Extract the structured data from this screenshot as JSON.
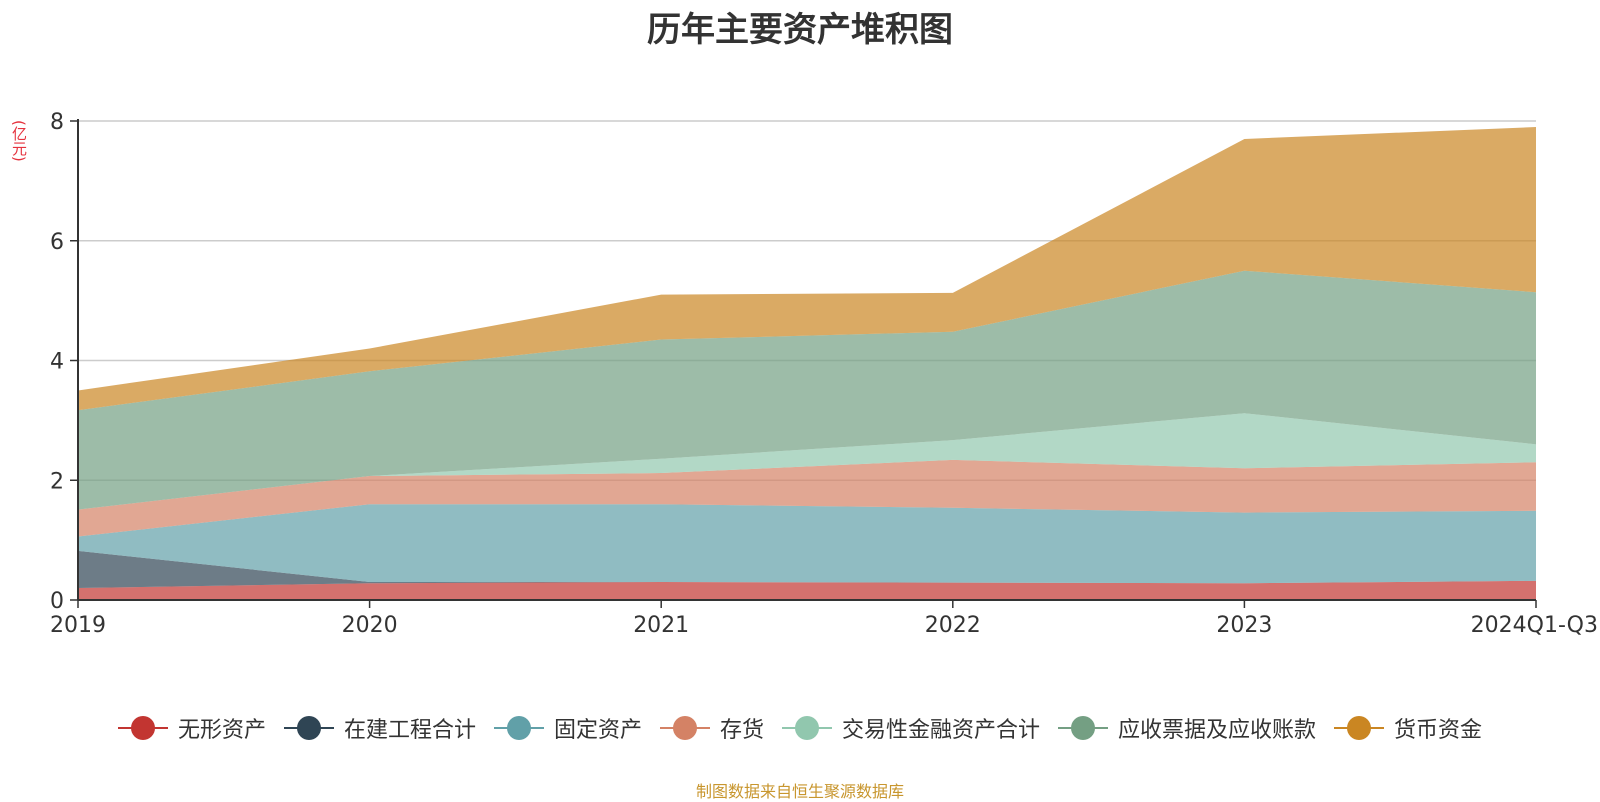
{
  "chart_data": {
    "type": "area",
    "stacked": true,
    "title": "历年主要资产堆积图",
    "unit": "(亿元)",
    "categories": [
      "2019",
      "2020",
      "2021",
      "2022",
      "2023",
      "2024Q1-Q3"
    ],
    "ylim": [
      0,
      8
    ],
    "yticks": [
      "0",
      "2",
      "4",
      "6",
      "8"
    ],
    "grid": true,
    "legend_position": "bottom",
    "series": [
      {
        "name": "无形资产",
        "color": "#c23531",
        "values": [
          0.2,
          0.28,
          0.3,
          0.29,
          0.28,
          0.32
        ]
      },
      {
        "name": "在建工程合计",
        "color": "#2f4554",
        "values": [
          0.62,
          0.02,
          0.0,
          0.0,
          0.0,
          0.0
        ]
      },
      {
        "name": "固定资产",
        "color": "#61a0a8",
        "values": [
          0.24,
          1.3,
          1.3,
          1.25,
          1.18,
          1.17
        ]
      },
      {
        "name": "存货",
        "color": "#d48265",
        "values": [
          0.45,
          0.47,
          0.52,
          0.8,
          0.74,
          0.81
        ]
      },
      {
        "name": "交易性金融资产合计",
        "color": "#91c7ae",
        "values": [
          0.0,
          0.0,
          0.24,
          0.33,
          0.92,
          0.3
        ]
      },
      {
        "name": "应收票据及应收账款",
        "color": "#749f83",
        "values": [
          1.66,
          1.75,
          1.99,
          1.81,
          2.38,
          2.54
        ]
      },
      {
        "name": "货币资金",
        "color": "#ca8622",
        "values": [
          0.33,
          0.38,
          0.75,
          0.65,
          2.2,
          2.76
        ]
      }
    ]
  },
  "source_note": "制图数据来自恒生聚源数据库"
}
